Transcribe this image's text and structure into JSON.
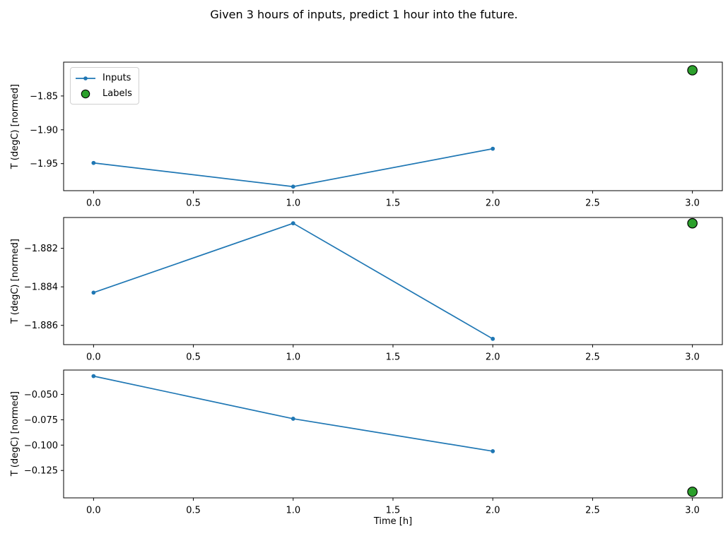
{
  "title": "Given 3 hours of inputs, predict 1 hour into the future.",
  "xlabel": "Time [h]",
  "legend": {
    "position": "upper-left-of-first-subplot",
    "items": [
      {
        "label": "Inputs",
        "marker": "line-with-dot"
      },
      {
        "label": "Labels",
        "marker": "filled-circle"
      }
    ]
  },
  "colors": {
    "inputs": "#1f77b4",
    "labels": "#2ca02c",
    "marker_edge": "#000000",
    "axes": "#000000",
    "legend_border": "#d0d0d0"
  },
  "chart_data": [
    {
      "type": "line",
      "ylabel": "T (degC) [normed]",
      "series": [
        {
          "name": "Inputs",
          "style": "line+marker",
          "x": [
            0,
            1,
            2
          ],
          "values": [
            -1.949,
            -1.984,
            -1.928
          ]
        },
        {
          "name": "Labels",
          "style": "scatter",
          "x": [
            3
          ],
          "values": [
            -1.812
          ]
        }
      ],
      "xlim": [
        -0.15,
        3.15
      ],
      "ylim": [
        -1.99,
        -1.8
      ],
      "xticks": {
        "values": [
          0,
          0.5,
          1,
          1.5,
          2,
          2.5,
          3
        ],
        "labels": [
          "0.0",
          "0.5",
          "1.0",
          "1.5",
          "2.0",
          "2.5",
          "3.0"
        ]
      },
      "yticks": {
        "values": [
          -1.85,
          -1.9,
          -1.95
        ],
        "labels": [
          "−1.85",
          "−1.90",
          "−1.95"
        ]
      },
      "grid": false,
      "has_legend": true
    },
    {
      "type": "line",
      "ylabel": "T (degC) [normed]",
      "series": [
        {
          "name": "Inputs",
          "style": "line+marker",
          "x": [
            0,
            1,
            2
          ],
          "values": [
            -1.8843,
            -1.8807,
            -1.8867
          ]
        },
        {
          "name": "Labels",
          "style": "scatter",
          "x": [
            3
          ],
          "values": [
            -1.8807
          ]
        }
      ],
      "xlim": [
        -0.15,
        3.15
      ],
      "ylim": [
        -1.887,
        -1.8804
      ],
      "xticks": {
        "values": [
          0,
          0.5,
          1,
          1.5,
          2,
          2.5,
          3
        ],
        "labels": [
          "0.0",
          "0.5",
          "1.0",
          "1.5",
          "2.0",
          "2.5",
          "3.0"
        ]
      },
      "yticks": {
        "values": [
          -1.882,
          -1.884,
          -1.886
        ],
        "labels": [
          "−1.882",
          "−1.884",
          "−1.886"
        ]
      },
      "grid": false,
      "has_legend": false
    },
    {
      "type": "line",
      "ylabel": "T (degC) [normed]",
      "series": [
        {
          "name": "Inputs",
          "style": "line+marker",
          "x": [
            0,
            1,
            2
          ],
          "values": [
            -0.032,
            -0.074,
            -0.106
          ]
        },
        {
          "name": "Labels",
          "style": "scatter",
          "x": [
            3
          ],
          "values": [
            -0.146
          ]
        }
      ],
      "xlim": [
        -0.15,
        3.15
      ],
      "ylim": [
        -0.152,
        -0.026
      ],
      "xticks": {
        "values": [
          0,
          0.5,
          1,
          1.5,
          2,
          2.5,
          3
        ],
        "labels": [
          "0.0",
          "0.5",
          "1.0",
          "1.5",
          "2.0",
          "2.5",
          "3.0"
        ]
      },
      "yticks": {
        "values": [
          -0.05,
          -0.075,
          -0.1,
          -0.125
        ],
        "labels": [
          "−0.050",
          "−0.075",
          "−0.100",
          "−0.125"
        ]
      },
      "grid": false,
      "has_legend": false
    }
  ]
}
